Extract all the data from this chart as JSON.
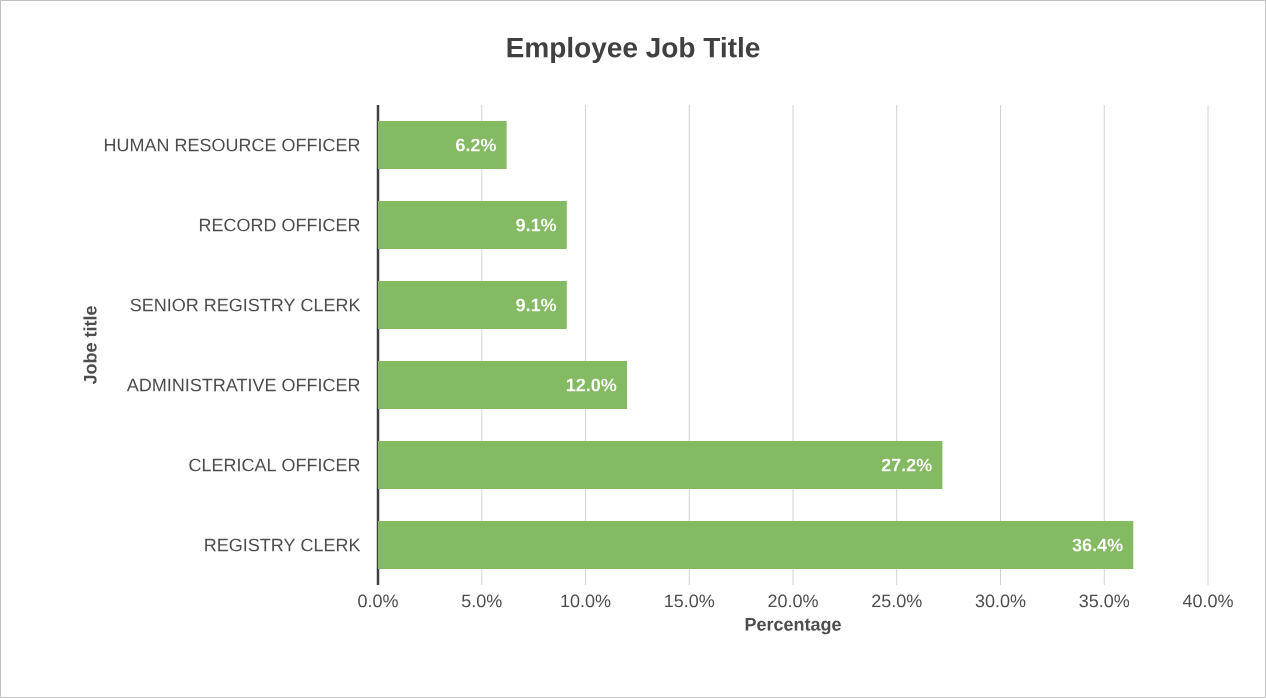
{
  "chart_data": {
    "type": "bar",
    "orientation": "horizontal",
    "title": "Employee Job Title",
    "xlabel": "Percentage",
    "ylabel": "Jobe title",
    "categories": [
      "HUMAN RESOURCE OFFICER",
      "RECORD OFFICER",
      "SENIOR REGISTRY CLERK",
      "ADMINISTRATIVE OFFICER",
      "CLERICAL OFFICER",
      "REGISTRY CLERK"
    ],
    "values": [
      6.2,
      9.1,
      9.1,
      12.0,
      27.2,
      36.4
    ],
    "value_labels": [
      "6.2%",
      "9.1%",
      "9.1%",
      "12.0%",
      "27.2%",
      "36.4%"
    ],
    "color": "#84bb62",
    "xlim": [
      0,
      40
    ],
    "xticks": [
      {
        "value": 0,
        "label": "0.0%"
      },
      {
        "value": 5,
        "label": "5.0%"
      },
      {
        "value": 10,
        "label": "10.0%"
      },
      {
        "value": 15,
        "label": "15.0%"
      },
      {
        "value": 20,
        "label": "20.0%"
      },
      {
        "value": 25,
        "label": "25.0%"
      },
      {
        "value": 30,
        "label": "30.0%"
      },
      {
        "value": 35,
        "label": "35.0%"
      },
      {
        "value": 40,
        "label": "40.0%"
      }
    ],
    "grid": "x"
  }
}
